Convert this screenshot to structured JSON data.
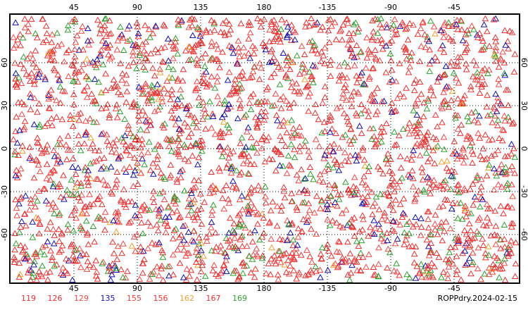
{
  "map": {
    "title": "ROPPdry.2024-02-15",
    "lon_ticks": [
      45,
      90,
      135,
      180,
      -135,
      -90,
      -45
    ],
    "lat_ticks": [
      60,
      30,
      0,
      -30,
      -60
    ],
    "legend": [
      {
        "id": 119,
        "color": "#e83030"
      },
      {
        "id": 126,
        "color": "#e83030"
      },
      {
        "id": 129,
        "color": "#f04848"
      },
      {
        "id": 135,
        "color": "#1010b0"
      },
      {
        "id": 155,
        "color": "#f03838"
      },
      {
        "id": 156,
        "color": "#e83030"
      },
      {
        "id": 162,
        "color": "#f0a030"
      },
      {
        "id": 167,
        "color": "#e83030"
      },
      {
        "id": 169,
        "color": "#30a030"
      }
    ]
  }
}
